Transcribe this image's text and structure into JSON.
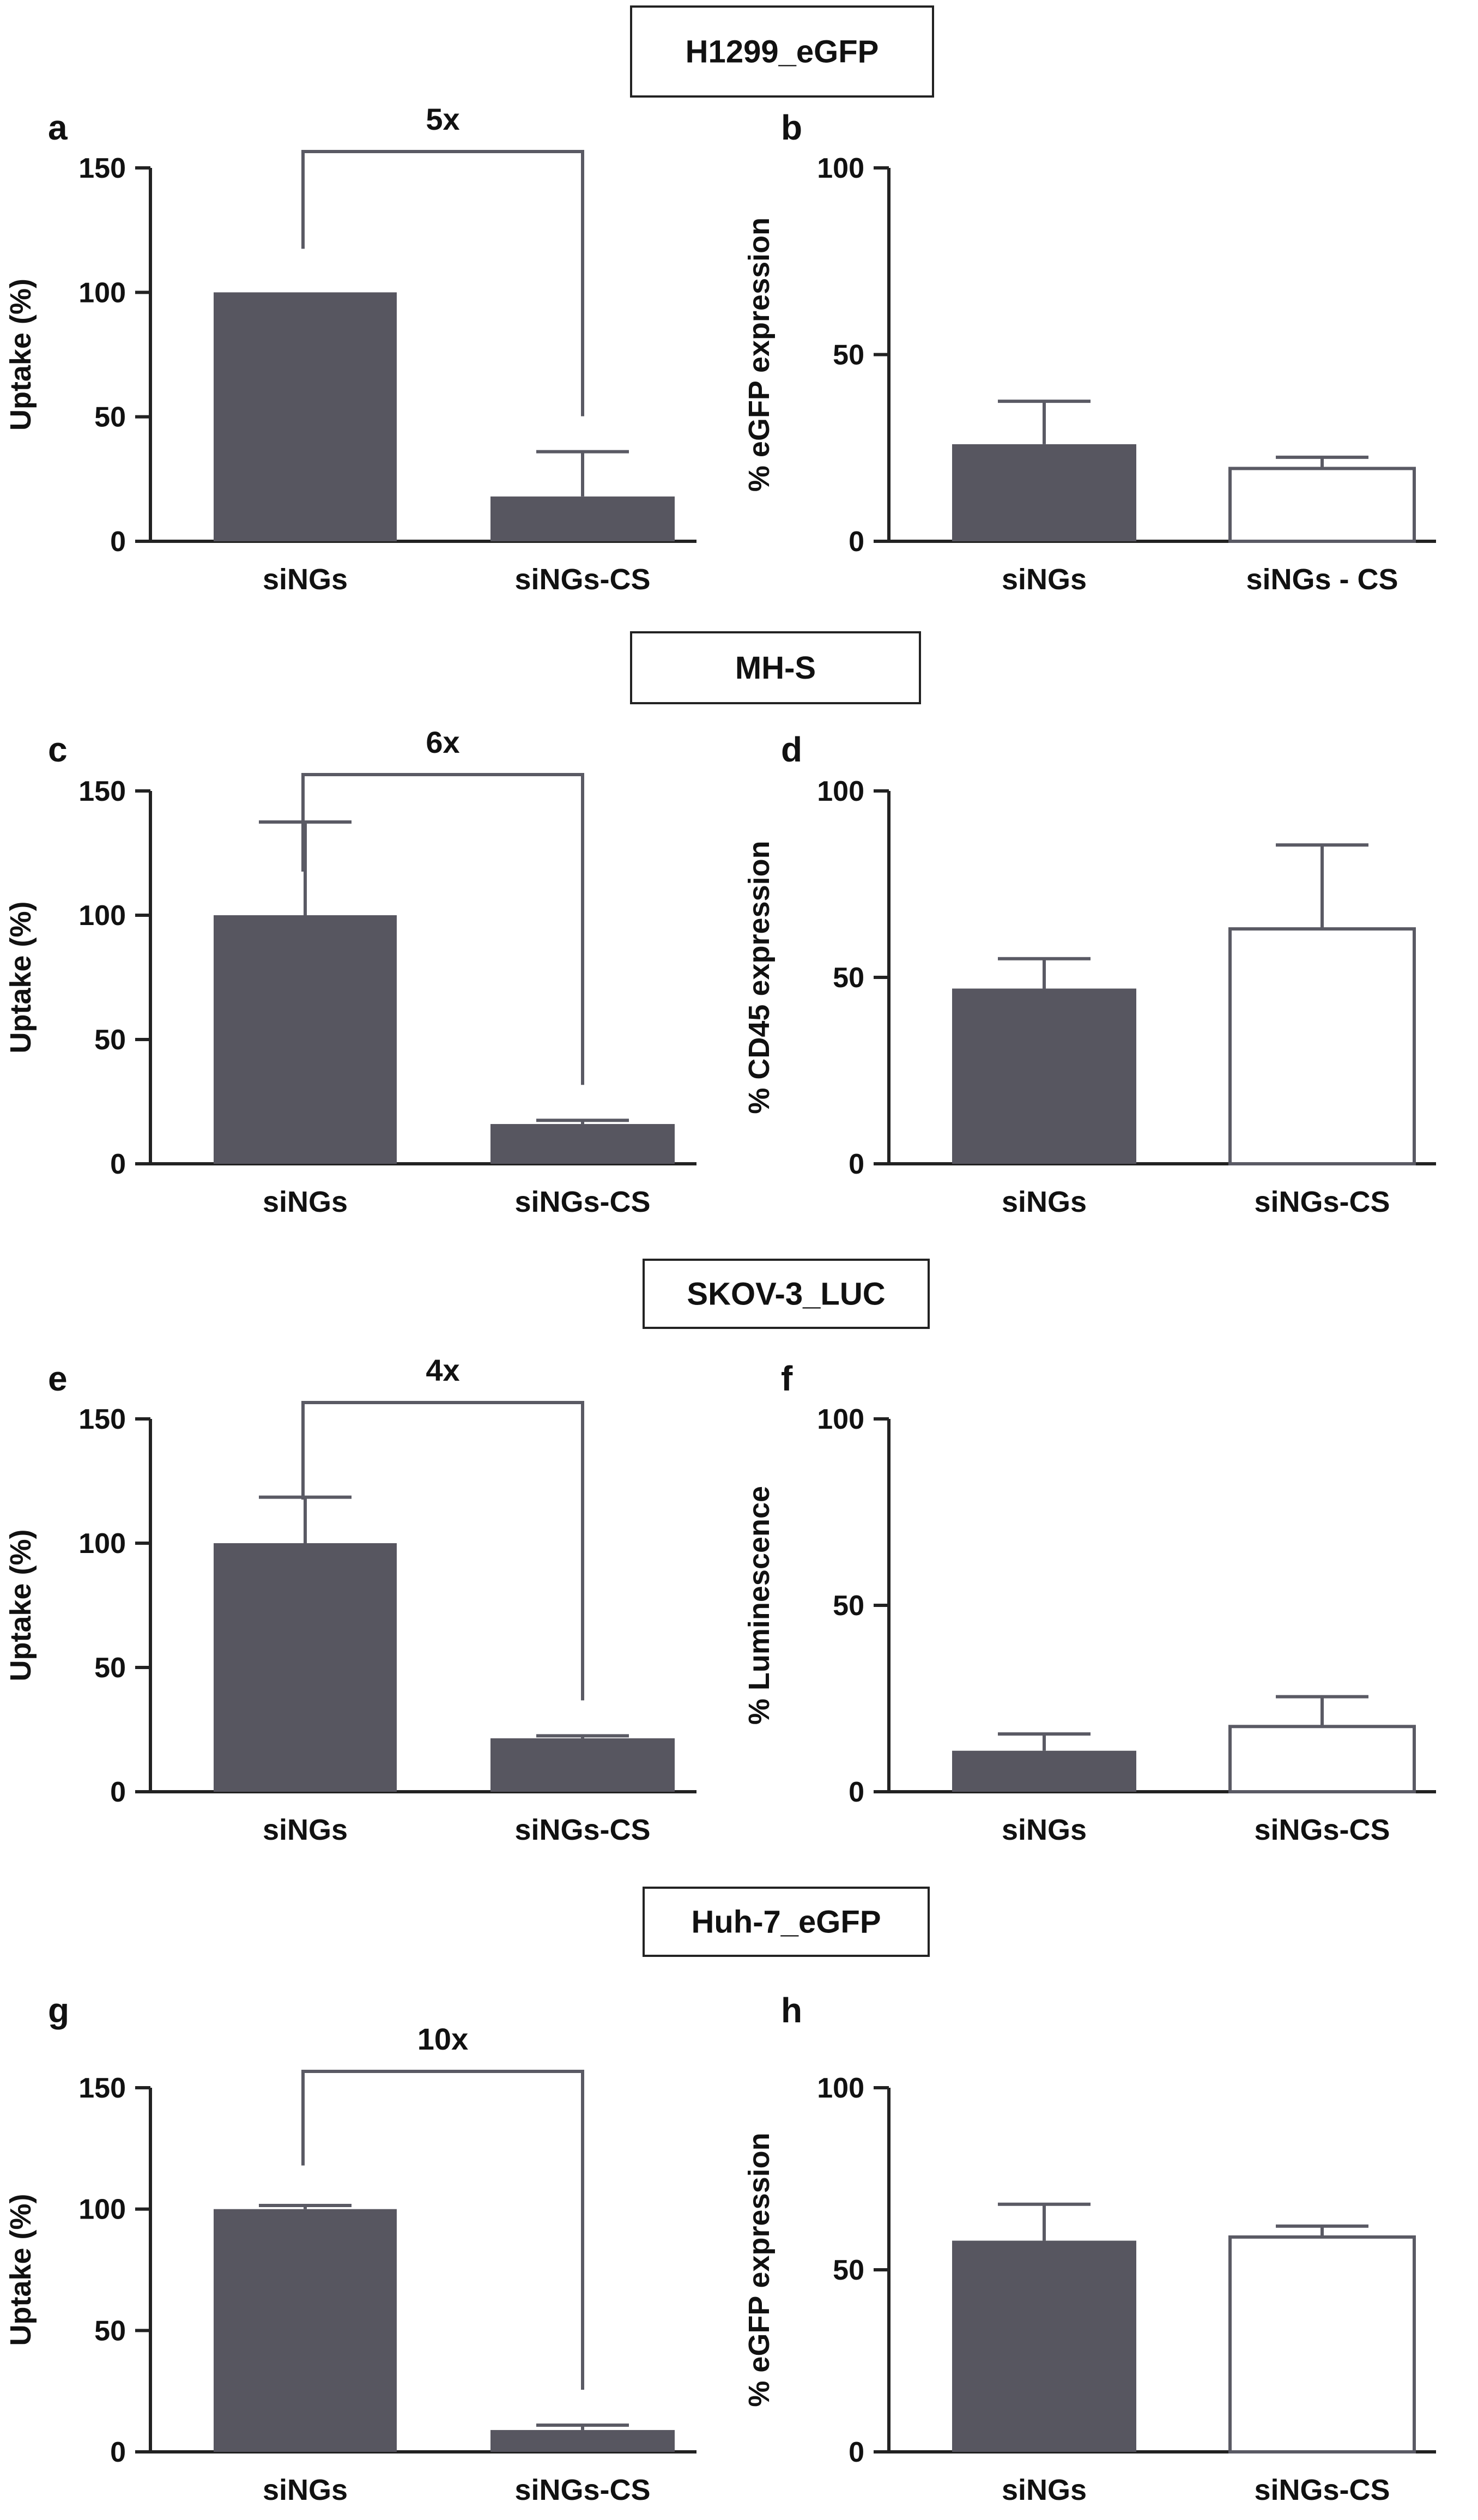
{
  "colors": {
    "bar_dark": "#575660",
    "bar_open": "#ffffff",
    "axis": "#222222",
    "bracket": "#5a5a64"
  },
  "chart_data": [
    {
      "panel": "a",
      "cell_line": "H1299_eGFP",
      "type": "bar",
      "title": "",
      "xlabel": "",
      "ylabel": "Uptake (%)",
      "ylim": [
        0,
        150
      ],
      "yticks": [
        0,
        50,
        100,
        150
      ],
      "categories": [
        "siNGs",
        "siNGs-CS"
      ],
      "values": [
        100,
        18
      ],
      "errors": [
        0,
        18
      ],
      "bar_styles": [
        "filled",
        "filled"
      ],
      "annotation": "5x"
    },
    {
      "panel": "b",
      "cell_line": "H1299_eGFP",
      "type": "bar",
      "title": "",
      "xlabel": "",
      "ylabel": "% eGFP expression",
      "ylim": [
        0,
        100
      ],
      "yticks": [
        0,
        50,
        100
      ],
      "categories": [
        "siNGs",
        "siNGs - CS"
      ],
      "values": [
        26,
        19.5
      ],
      "errors": [
        11.5,
        3
      ],
      "bar_styles": [
        "filled",
        "open"
      ],
      "annotation": ""
    },
    {
      "panel": "c",
      "cell_line": "MH-S",
      "type": "bar",
      "title": "",
      "xlabel": "",
      "ylabel": "Uptake (%)",
      "ylim": [
        0,
        150
      ],
      "yticks": [
        0,
        50,
        100,
        150
      ],
      "categories": [
        "siNGs",
        "siNGs-CS"
      ],
      "values": [
        100,
        16
      ],
      "errors": [
        37.5,
        1.5
      ],
      "bar_styles": [
        "filled",
        "filled"
      ],
      "annotation": "6x"
    },
    {
      "panel": "d",
      "cell_line": "MH-S",
      "type": "bar",
      "title": "",
      "xlabel": "",
      "ylabel": "% CD45 expression",
      "ylim": [
        0,
        100
      ],
      "yticks": [
        0,
        50,
        100
      ],
      "categories": [
        "siNGs",
        "siNGs-CS"
      ],
      "values": [
        47,
        63
      ],
      "errors": [
        8,
        22.5
      ],
      "bar_styles": [
        "filled",
        "open"
      ],
      "annotation": ""
    },
    {
      "panel": "e",
      "cell_line": "SKOV-3_LUC",
      "type": "bar",
      "title": "",
      "xlabel": "",
      "ylabel": "Uptake (%)",
      "ylim": [
        0,
        150
      ],
      "yticks": [
        0,
        50,
        100,
        150
      ],
      "categories": [
        "siNGs",
        "siNGs-CS"
      ],
      "values": [
        100,
        21.5
      ],
      "errors": [
        18.5,
        1
      ],
      "bar_styles": [
        "filled",
        "filled"
      ],
      "annotation": "4x"
    },
    {
      "panel": "f",
      "cell_line": "SKOV-3_LUC",
      "type": "bar",
      "title": "",
      "xlabel": "",
      "ylabel": "% Luminescence",
      "ylim": [
        0,
        100
      ],
      "yticks": [
        0,
        50,
        100
      ],
      "categories": [
        "siNGs",
        "siNGs-CS"
      ],
      "values": [
        11,
        17.5
      ],
      "errors": [
        4.5,
        8
      ],
      "bar_styles": [
        "filled",
        "open"
      ],
      "annotation": ""
    },
    {
      "panel": "g",
      "cell_line": "Huh-7_eGFP",
      "type": "bar",
      "title": "",
      "xlabel": "",
      "ylabel": "Uptake (%)",
      "ylim": [
        0,
        150
      ],
      "yticks": [
        0,
        50,
        100,
        150
      ],
      "categories": [
        "siNGs",
        "siNGs-CS"
      ],
      "values": [
        100,
        9
      ],
      "errors": [
        1.5,
        2
      ],
      "bar_styles": [
        "filled",
        "filled"
      ],
      "annotation": "10x"
    },
    {
      "panel": "h",
      "cell_line": "Huh-7_eGFP",
      "type": "bar",
      "title": "",
      "xlabel": "",
      "ylabel": "% eGFP expression",
      "ylim": [
        0,
        100
      ],
      "yticks": [
        0,
        50,
        100
      ],
      "categories": [
        "siNGs",
        "siNGs-CS"
      ],
      "values": [
        58,
        59
      ],
      "errors": [
        10,
        3
      ],
      "bar_styles": [
        "filled",
        "open"
      ],
      "annotation": ""
    }
  ]
}
